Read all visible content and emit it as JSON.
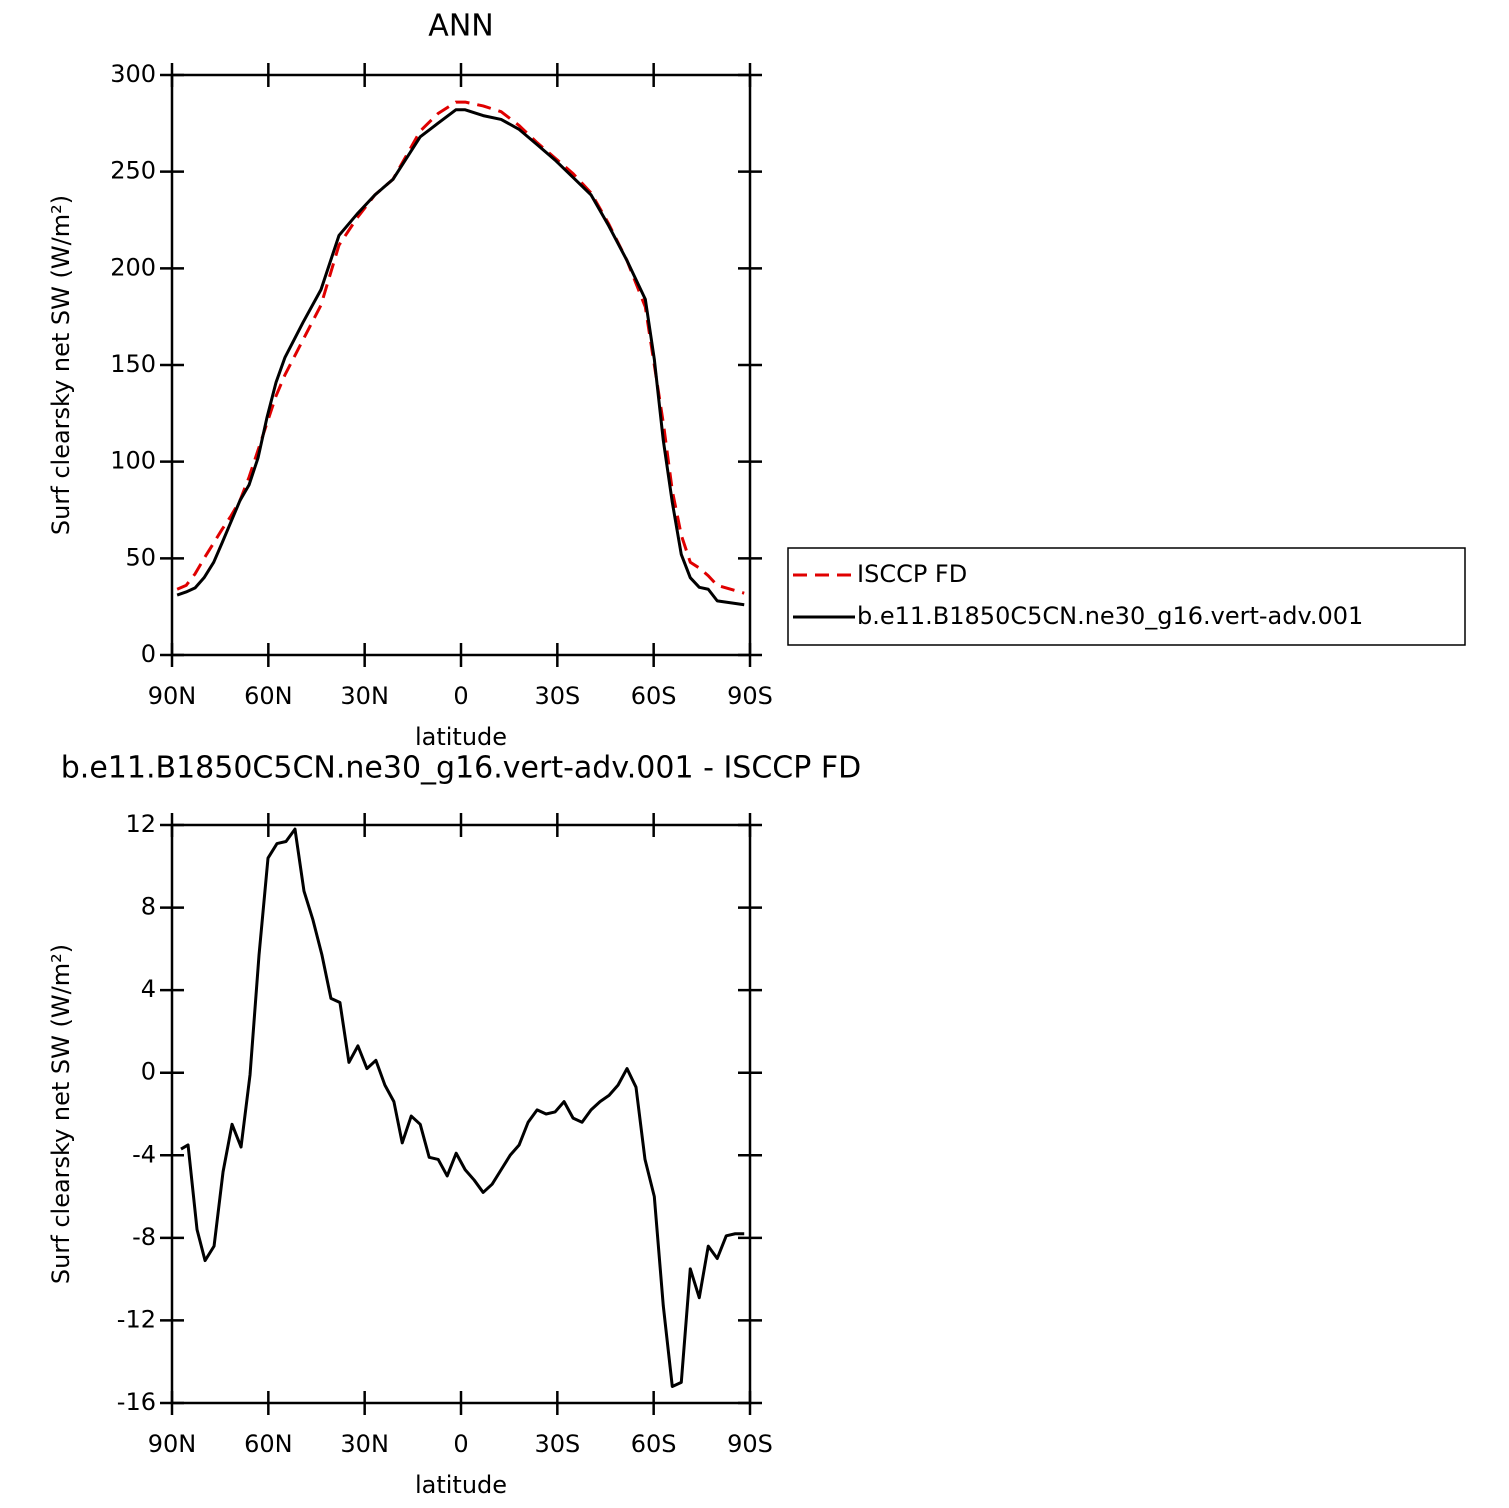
{
  "chart_data": [
    {
      "type": "line",
      "title": "ANN",
      "xlabel": "latitude",
      "ylabel": "Surf clearsky net SW (W/m²)",
      "xlim": [
        90,
        -90
      ],
      "xticks": [
        {
          "value": 90,
          "label": "90N"
        },
        {
          "value": 60,
          "label": "60N"
        },
        {
          "value": 30,
          "label": "30N"
        },
        0,
        {
          "value": -30,
          "label": "30S"
        },
        {
          "value": -60,
          "label": "60S"
        },
        {
          "value": -90,
          "label": "90S"
        }
      ],
      "ylim": [
        0,
        300
      ],
      "yticks": [
        0,
        50,
        100,
        150,
        200,
        250,
        300
      ],
      "x": [
        88.4,
        85.6,
        82.8,
        80,
        77,
        74.4,
        71.6,
        68.8,
        66,
        63.2,
        60.4,
        57.6,
        54.8,
        49.2,
        43.6,
        38,
        32.4,
        26.8,
        21.2,
        12.7,
        7.2,
        1.6,
        -1.3,
        -6.9,
        -12.5,
        -18,
        -23.7,
        -29.3,
        -34.9,
        -40.5,
        -46,
        -51.7,
        -57.4,
        -60.2,
        -63,
        -65.8,
        -68.6,
        -71.4,
        -74.2,
        -77,
        -79.8,
        -88.2
      ],
      "series": [
        {
          "name": "ISCCP FD",
          "color": "#e00000",
          "linestyle": "dashed",
          "values": [
            34,
            36,
            42,
            50,
            58,
            65,
            72,
            80,
            92,
            106,
            120,
            134,
            145,
            163,
            181,
            212,
            226,
            238,
            246,
            271,
            280,
            286,
            286,
            284,
            281,
            274,
            265,
            257,
            249,
            239,
            223,
            204,
            180,
            150,
            120,
            85,
            62,
            48,
            45,
            41,
            36,
            32
          ]
        },
        {
          "name": "b.e11.B1850C5CN.ne30_g16.vert-adv.001",
          "color": "#000000",
          "linestyle": "solid",
          "values": [
            31,
            32.6,
            34.7,
            40,
            48,
            58,
            69,
            80,
            88,
            102,
            123,
            141,
            154,
            172,
            189,
            217,
            228,
            238,
            246,
            268,
            275,
            282,
            282,
            279,
            277,
            272,
            264,
            256,
            247,
            238,
            222,
            204,
            184,
            153,
            111,
            79,
            52,
            40,
            35,
            34,
            28,
            26
          ]
        }
      ]
    },
    {
      "type": "line",
      "title": "b.e11.B1850C5CN.ne30_g16.vert-adv.001 - ISCCP FD",
      "xlabel": "latitude",
      "ylabel": "Surf clearsky net SW (W/m²)",
      "xlim": [
        90,
        -90
      ],
      "xticks": [
        {
          "value": 90,
          "label": "90N"
        },
        {
          "value": 60,
          "label": "60N"
        },
        {
          "value": 30,
          "label": "30N"
        },
        0,
        {
          "value": -30,
          "label": "30S"
        },
        {
          "value": -60,
          "label": "60S"
        },
        {
          "value": -90,
          "label": "90S"
        }
      ],
      "ylim": [
        -16,
        12
      ],
      "yticks": [
        -16,
        -12,
        -8,
        -4,
        0,
        4,
        8,
        12
      ],
      "x": [
        87.2,
        85,
        82.2,
        79.7,
        76.9,
        74.1,
        71.3,
        68.5,
        65.7,
        62.9,
        60.1,
        57.3,
        54.5,
        51.7,
        48.9,
        46.1,
        43.3,
        40.5,
        37.7,
        34.9,
        32.1,
        29.3,
        26.5,
        23.7,
        20.9,
        18.3,
        15.5,
        12.7,
        9.9,
        7.1,
        4.3,
        1.5,
        -1.3,
        -4.1,
        -6.9,
        -9.7,
        -12.5,
        -15.3,
        -18.1,
        -20.9,
        -23.7,
        -26.5,
        -29.3,
        -32.1,
        -34.9,
        -37.7,
        -40.5,
        -43.3,
        -46.1,
        -48.9,
        -51.7,
        -54.5,
        -57.3,
        -60.2,
        -63,
        -65.8,
        -68.6,
        -71.4,
        -74.2,
        -77,
        -79.8,
        -82.6,
        -85.4,
        -88.2
      ],
      "color": "#000000",
      "values": [
        -3.7,
        -3.5,
        -7.6,
        -9.1,
        -8.4,
        -4.8,
        -2.5,
        -3.6,
        -0.1,
        5.7,
        10.4,
        11.1,
        11.2,
        11.8,
        8.8,
        7.4,
        5.7,
        3.6,
        3.4,
        0.5,
        1.3,
        0.2,
        0.6,
        -0.6,
        -1.4,
        -3.4,
        -2.1,
        -2.5,
        -4.1,
        -4.2,
        -5.0,
        -3.9,
        -4.7,
        -5.2,
        -5.8,
        -5.4,
        -4.7,
        -4.0,
        -3.5,
        -2.4,
        -1.8,
        -2.0,
        -1.9,
        -1.4,
        -2.2,
        -2.4,
        -1.8,
        -1.4,
        -1.1,
        -0.6,
        0.2,
        -0.7,
        -4.2,
        -6.0,
        -11.3,
        -15.2,
        -15.0,
        -9.5,
        -10.9,
        -8.4,
        -9.0,
        -7.9,
        -7.8,
        -7.8
      ]
    }
  ]
}
